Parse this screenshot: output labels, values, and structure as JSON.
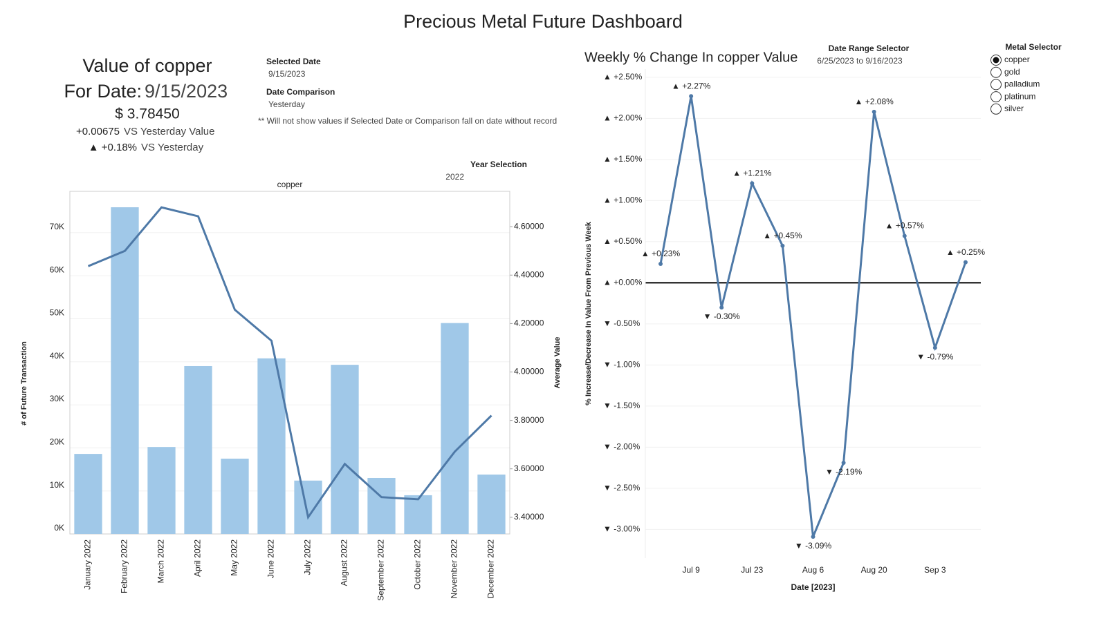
{
  "title": "Precious Metal Future Dashboard",
  "summary": {
    "heading": "Value of copper",
    "date_label": "For Date:",
    "date": "9/15/2023",
    "value": "$ 3.78450",
    "change": "+0.00675",
    "change_note": "VS  Yesterday Value",
    "pct_change": "▲ +0.18%",
    "pct_note": "VS Yesterday"
  },
  "filters": {
    "selected_date_label": "Selected Date",
    "selected_date": "9/15/2023",
    "comparison_label": "Date Comparison",
    "comparison": "Yesterday",
    "note": "** Will not show values if Selected Date or Comparison fall on date without record",
    "year_label": "Year Selection",
    "year": "2022",
    "range_label": "Date Range Selector",
    "range": "6/25/2023 to 9/16/2023",
    "metal_label": "Metal Selector",
    "metals": [
      {
        "label": "copper",
        "selected": true
      },
      {
        "label": "gold",
        "selected": false
      },
      {
        "label": "palladium",
        "selected": false
      },
      {
        "label": "platinum",
        "selected": false
      },
      {
        "label": "silver",
        "selected": false
      }
    ]
  },
  "chart_data": [
    {
      "type": "combo",
      "title": "copper",
      "ylabel": "# of Future Transaction",
      "y2label": "Average Value",
      "categories": [
        "January 2022",
        "February 2022",
        "March 2022",
        "April 2022",
        "May 2022",
        "June 2022",
        "July 2022",
        "August 2022",
        "September 2022",
        "October 2022",
        "November 2022",
        "December 2022"
      ],
      "series": [
        {
          "type": "bar",
          "color": "#a0c8e8",
          "values": [
            18600,
            75900,
            20200,
            39000,
            17500,
            40800,
            12400,
            39300,
            13000,
            9000,
            49000,
            13800
          ]
        },
        {
          "type": "line",
          "axis": "y2",
          "color": "#4e79a7",
          "values": [
            4.437,
            4.5,
            4.68,
            4.643,
            4.257,
            4.129,
            3.4,
            3.62,
            3.483,
            3.474,
            3.671,
            3.82
          ]
        }
      ],
      "ylim": [
        0,
        79600
      ],
      "yticks": [
        {
          "value": 0,
          "label": "0K"
        },
        {
          "value": 10000,
          "label": "10K"
        },
        {
          "value": 20000,
          "label": "20K"
        },
        {
          "value": 30000,
          "label": "30K"
        },
        {
          "value": 40000,
          "label": "40K"
        },
        {
          "value": 50000,
          "label": "50K"
        },
        {
          "value": 60000,
          "label": "60K"
        },
        {
          "value": 70000,
          "label": "70K"
        }
      ],
      "y2lim": [
        3.331,
        4.746
      ],
      "y2ticks": [
        {
          "value": 3.4,
          "label": "3.40000"
        },
        {
          "value": 3.6,
          "label": "3.60000"
        },
        {
          "value": 3.8,
          "label": "3.80000"
        },
        {
          "value": 4.0,
          "label": "4.00000"
        },
        {
          "value": 4.2,
          "label": "4.20000"
        },
        {
          "value": 4.4,
          "label": "4.40000"
        },
        {
          "value": 4.6,
          "label": "4.60000"
        }
      ],
      "grid": true
    },
    {
      "type": "line",
      "title": "Weekly % Change In copper Value",
      "xlabel": "Date [2023]",
      "ylabel": "% Increase/Decrease In Value From Previous Week",
      "categories": [
        null,
        "Jul 9",
        null,
        "Jul 23",
        null,
        "Aug 6",
        null,
        "Aug 20",
        null,
        "Sep 3",
        null
      ],
      "values": [
        0.23,
        2.27,
        -0.3,
        1.21,
        0.45,
        -3.09,
        -2.19,
        2.08,
        0.57,
        -0.79,
        0.25
      ],
      "value_labels": [
        "▲ +0.23%",
        "▲ +2.27%",
        "▼ -0.30%",
        "▲ +1.21%",
        "▲ +0.45%",
        "▼ -3.09%",
        "▼ -2.19%",
        "▲ +2.08%",
        "▲ +0.57%",
        "▼ -0.79%",
        "▲ +0.25%"
      ],
      "color": "#4e79a7",
      "ylim": [
        -3.35,
        2.6
      ],
      "yticks": [
        {
          "value": 2.5,
          "label": "▲ +2.50%"
        },
        {
          "value": 2.0,
          "label": "▲ +2.00%"
        },
        {
          "value": 1.5,
          "label": "▲ +1.50%"
        },
        {
          "value": 1.0,
          "label": "▲ +1.00%"
        },
        {
          "value": 0.5,
          "label": "▲ +0.50%"
        },
        {
          "value": 0,
          "label": "▲ +0.00%"
        },
        {
          "value": -0.5,
          "label": "▼ -0.50%"
        },
        {
          "value": -1.0,
          "label": "▼ -1.00%"
        },
        {
          "value": -1.5,
          "label": "▼ -1.50%"
        },
        {
          "value": -2.0,
          "label": "▼ -2.00%"
        },
        {
          "value": -2.5,
          "label": "▼ -2.50%"
        },
        {
          "value": -3.0,
          "label": "▼ -3.00%"
        }
      ],
      "grid": true
    }
  ]
}
